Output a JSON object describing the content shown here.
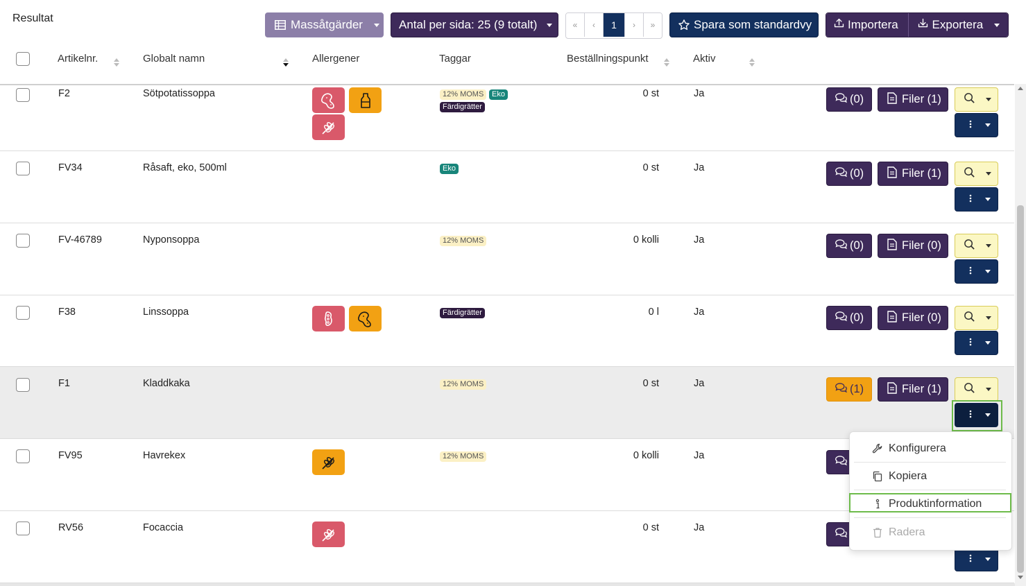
{
  "title": "Resultat",
  "toolbar": {
    "mass_actions": "Massåtgärder",
    "per_page": "Antal per sida: 25 (9 totalt)",
    "pager": {
      "first": "«",
      "prev": "‹",
      "current": "1",
      "next": "›",
      "last": "»"
    },
    "save_default": "Spara som standardvy",
    "import": "Importera",
    "export": "Exportera"
  },
  "columns": {
    "article_no": "Artikelnr.",
    "global_name": "Globalt namn",
    "allergens": "Allergener",
    "tags": "Taggar",
    "order_point": "Beställningspunkt",
    "active": "Aktiv"
  },
  "rows": [
    {
      "article": "F2",
      "name": "Sötpotatissoppa",
      "order_point": "0 st",
      "active": "Ja",
      "tags": [
        "12% MOMS",
        "Eko",
        "Färdigrätter"
      ],
      "comments": "(0)",
      "files": "Filer (1)",
      "allergens": [
        "peanut-icon",
        "milk-bottle-icon",
        "wheat-icon"
      ]
    },
    {
      "article": "FV34",
      "name": "Råsaft, eko, 500ml",
      "order_point": "0 st",
      "active": "Ja",
      "tags": [
        "Eko"
      ],
      "comments": "(0)",
      "files": "Filer (1)",
      "allergens": []
    },
    {
      "article": "FV-46789",
      "name": "Nyponsoppa",
      "order_point": "0 kolli",
      "active": "Ja",
      "tags": [
        "12% MOMS"
      ],
      "comments": "(0)",
      "files": "Filer (0)",
      "allergens": []
    },
    {
      "article": "F38",
      "name": "Linssoppa",
      "order_point": "0 l",
      "active": "Ja",
      "tags": [
        "Färdigrätter"
      ],
      "comments": "(0)",
      "files": "Filer (0)",
      "allergens": [
        "soy-bean-icon",
        "peanut-icon"
      ]
    },
    {
      "article": "F1",
      "name": "Kladdkaka",
      "order_point": "0 st",
      "active": "Ja",
      "tags": [
        "12% MOMS"
      ],
      "comments": "(1)",
      "files": "Filer (1)",
      "allergens": []
    },
    {
      "article": "FV95",
      "name": "Havrekex",
      "order_point": "0 kolli",
      "active": "Ja",
      "tags": [
        "12% MOMS"
      ],
      "comments": "",
      "files": "",
      "allergens": [
        "wheat-icon"
      ]
    },
    {
      "article": "RV56",
      "name": "Focaccia",
      "order_point": "0 st",
      "active": "Ja",
      "tags": [],
      "comments": "",
      "files": "",
      "allergens": [
        "wheat-icon"
      ]
    }
  ],
  "dropdown": {
    "configure": "Konfigurera",
    "copy": "Kopiera",
    "product_info": "Produktinformation",
    "delete": "Radera"
  },
  "colors": {
    "primary_purple": "#3e2a5a",
    "navy": "#13305e",
    "allergen_red": "#d9596a",
    "allergen_orange": "#f2a113",
    "eko_green": "#18857a",
    "highlight_green": "#6dbb4a"
  }
}
